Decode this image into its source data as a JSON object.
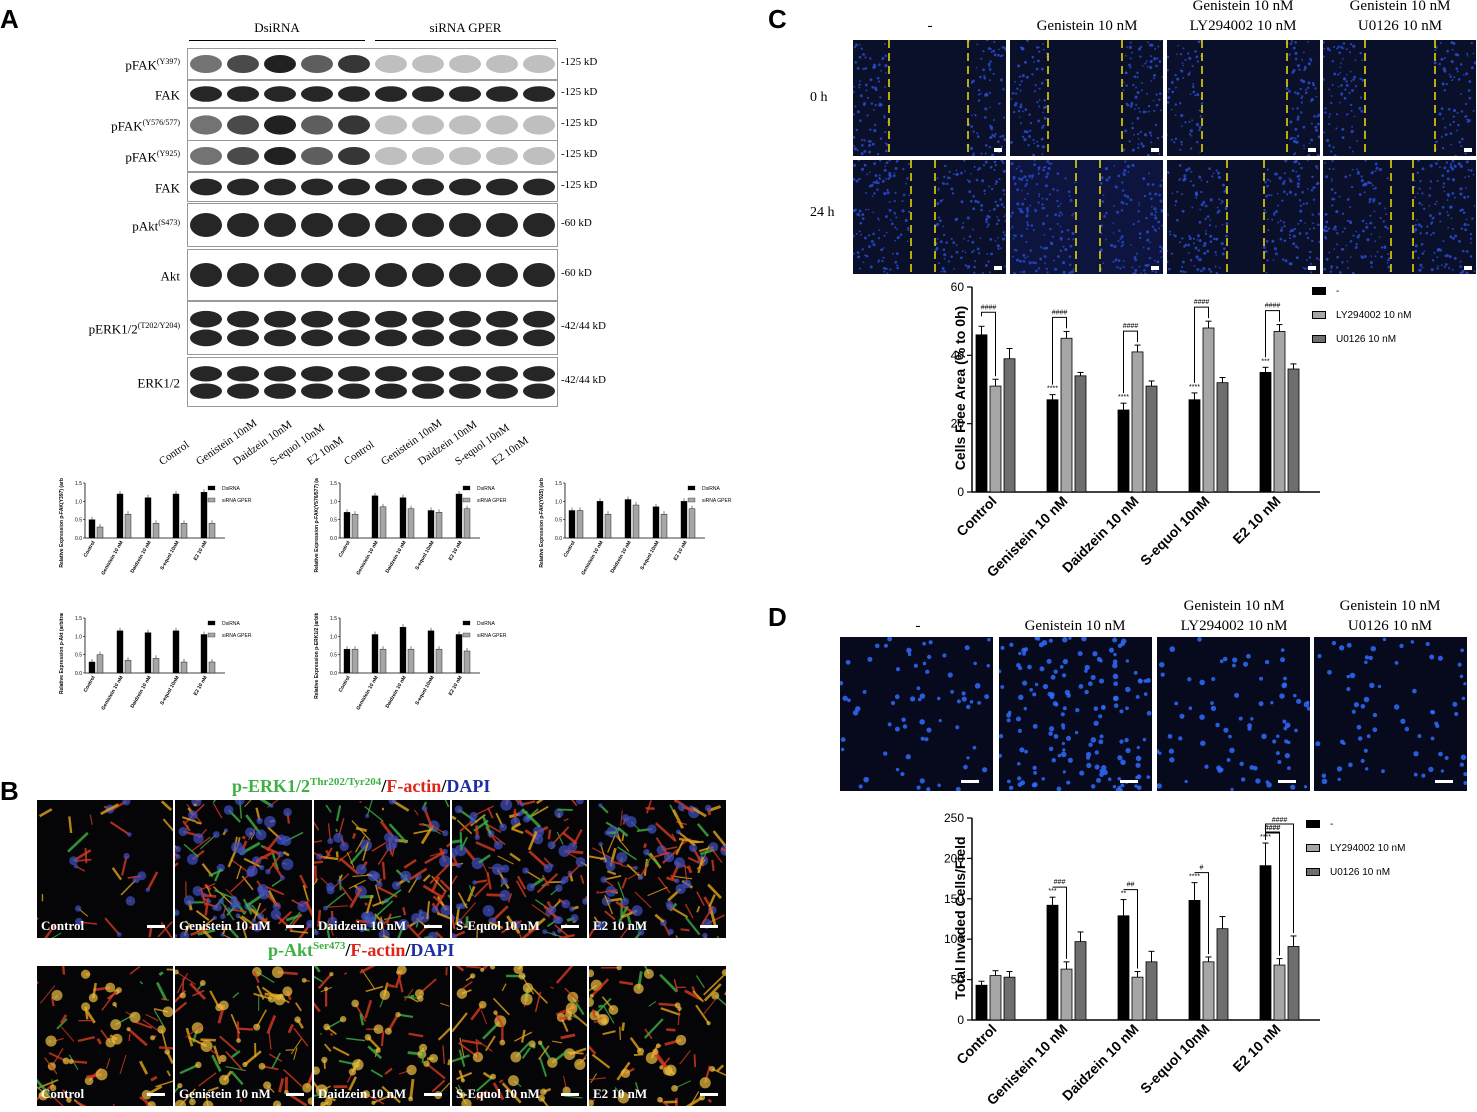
{
  "panels": {
    "A": "A",
    "B": "B",
    "C": "C",
    "D": "D"
  },
  "panel_a": {
    "group_labels": [
      "DsiRNA",
      "siRNA GPER"
    ],
    "blots": [
      {
        "base": "pFAK",
        "sup": "(Y397)",
        "kd": "-125 kD"
      },
      {
        "base": "FAK",
        "sup": "",
        "kd": "-125 kD"
      },
      {
        "base": "pFAK",
        "sup": "(Y576/577)",
        "kd": "-125 kD"
      },
      {
        "base": "pFAK",
        "sup": "(Y925)",
        "kd": "-125 kD"
      },
      {
        "base": "FAK",
        "sup": "",
        "kd": "-125 kD"
      },
      {
        "base": "pAkt",
        "sup": "(S473)",
        "kd": "-60 kD"
      },
      {
        "base": "Akt",
        "sup": "",
        "kd": "-60 kD"
      },
      {
        "base": "pERK1/2",
        "sup": "(T202/Y204)",
        "kd": "-42/44 kD"
      },
      {
        "base": "ERK1/2",
        "sup": "",
        "kd": "-42/44 kD"
      }
    ],
    "lanes": [
      "Control",
      "Genistein 10nM",
      "Daidzein 10nM",
      "S-equol 10nM",
      "E2 10nM",
      "Control",
      "Genistein 10nM",
      "Daidzein 10nM",
      "S-equol 10nM",
      "E2 10nM"
    ],
    "small_chart_categories": [
      "Control",
      "Genistein 10 nM",
      "Daidzein 10 nM",
      "S-equol 10nM",
      "E2 10 nM"
    ],
    "small_chart_legend": [
      "DsiRNA",
      "siRNA GPER"
    ],
    "small_chart_ylabels": [
      "Relative Expression p-FAK(Y397) (arbitrary unit)",
      "Relative Expression p-FAK(Y576/577) (arbitrary unit)",
      "Relative Expression p-FAK(Y925) (arbitrary unit)",
      "Relative Expression p-Akt (arbitrary unit)",
      "Relative Expression p-ERK1/2 (arbitrary unit)"
    ]
  },
  "panel_b": {
    "stain1": {
      "a": "p-ERK1/2",
      "a_sup": "Thr202/Tyr204",
      "b": "/",
      "c": "F-actin",
      "d": "/",
      "e": "DAPI"
    },
    "stain2": {
      "a": "p-Akt",
      "a_sup": "Ser473",
      "b": "/",
      "c": "F-actin",
      "d": "/",
      "e": "DAPI"
    },
    "captions": [
      "Control",
      "Genistein 10 nM",
      "Daidzein 10 nM",
      "S-Equol 10 nM",
      "E2 10 nM"
    ]
  },
  "panel_c": {
    "col_headers": [
      [
        "-"
      ],
      [
        "Genistein 10 nM"
      ],
      [
        "Genistein 10 nM",
        "LY294002 10 nM"
      ],
      [
        "Genistein 10 nM",
        "U0126 10 nM"
      ]
    ],
    "row_headers": [
      "0 h",
      "24 h"
    ],
    "legend": [
      "-",
      "LY294002 10 nM",
      "U0126 10 nM"
    ],
    "ylabel": "Cells Free Area (% to 0h)"
  },
  "panel_d": {
    "col_headers": [
      [
        "-"
      ],
      [
        "Genistein 10 nM"
      ],
      [
        "Genistein 10 nM",
        "LY294002 10 nM"
      ],
      [
        "Genistein 10 nM",
        "U0126 10 nM"
      ]
    ],
    "legend": [
      "-",
      "LY294002 10 nM",
      "U0126 10 nM"
    ],
    "ylabel": "Total Invaded Cells/Field"
  },
  "colors": {
    "black_bar": "#000000",
    "light_gray": "#a6a6a6",
    "dark_gray": "#6e6e6e",
    "fluor_blue": "#1f3fbf",
    "actin_red": "#d63a1f",
    "erk_green": "#3cb043"
  },
  "chart_data": [
    {
      "type": "bar",
      "title": "",
      "xlabel": "",
      "ylabel": "Cells Free Area (% to 0h)",
      "ylim": [
        0,
        60
      ],
      "yticks": [
        0,
        20,
        40,
        60
      ],
      "categories": [
        "Control",
        "Genistein 10 nM",
        "Daidzein 10 nM",
        "S-equol 10nM",
        "E2 10 nM"
      ],
      "series": [
        {
          "name": "-",
          "values": [
            46,
            27,
            24,
            27,
            35
          ],
          "errors": [
            2.5,
            1.5,
            2,
            2,
            1.5
          ]
        },
        {
          "name": "LY294002 10 nM",
          "values": [
            31,
            45,
            41,
            48,
            47
          ],
          "errors": [
            2,
            2,
            2,
            2,
            2
          ]
        },
        {
          "name": "U0126 10 nM",
          "values": [
            39,
            34,
            31,
            32,
            36
          ],
          "errors": [
            3,
            1,
            1.5,
            1.5,
            1.5
          ]
        }
      ],
      "annotations_above": [
        "",
        "****",
        "****",
        "****",
        "***"
      ],
      "brackets": [
        "####",
        "####",
        "####",
        "####",
        "####"
      ]
    },
    {
      "type": "bar",
      "title": "",
      "xlabel": "",
      "ylabel": "Total Invaded Cells/Field",
      "ylim": [
        0,
        250
      ],
      "yticks": [
        0,
        50,
        100,
        150,
        200,
        250
      ],
      "categories": [
        "Control",
        "Genistein 10 nM",
        "Daidzein 10 nM",
        "S-equol 10nM",
        "E2 10 nM"
      ],
      "series": [
        {
          "name": "-",
          "values": [
            43,
            142,
            129,
            148,
            191
          ],
          "errors": [
            5,
            10,
            20,
            22,
            28
          ]
        },
        {
          "name": "LY294002 10 nM",
          "values": [
            55,
            63,
            53,
            72,
            68
          ],
          "errors": [
            6,
            9,
            7,
            6,
            8
          ]
        },
        {
          "name": "U0126 10 nM",
          "values": [
            53,
            97,
            72,
            113,
            91
          ],
          "errors": [
            7,
            12,
            13,
            15,
            13
          ]
        }
      ],
      "annotations_above": [
        "",
        "***",
        "**",
        "****",
        "****"
      ],
      "brackets": [
        "",
        "###",
        "##",
        "#",
        "####"
      ],
      "extra_brackets": [
        "####",
        "####"
      ]
    },
    {
      "type": "bar",
      "ylabel": "Relative Expression p-FAK(Y397) (arbitrary unit)",
      "ylim": [
        0,
        1.5
      ],
      "categories": [
        "Control",
        "Genistein 10 nM",
        "Daidzein 10 nM",
        "S-equol 10nM",
        "E2 10 nM"
      ],
      "series": [
        {
          "name": "DsiRNA",
          "values": [
            0.5,
            1.2,
            1.1,
            1.2,
            1.25
          ]
        },
        {
          "name": "siRNA GPER",
          "values": [
            0.3,
            0.65,
            0.4,
            0.4,
            0.4
          ]
        }
      ]
    },
    {
      "type": "bar",
      "ylabel": "Relative Expression p-FAK(Y576/577) (arbitrary unit)",
      "ylim": [
        0,
        1.5
      ],
      "categories": [
        "Control",
        "Genistein 10 nM",
        "Daidzein 10 nM",
        "S-equol 10nM",
        "E2 10 nM"
      ],
      "series": [
        {
          "name": "DsiRNA",
          "values": [
            0.7,
            1.15,
            1.1,
            0.75,
            1.2
          ]
        },
        {
          "name": "siRNA GPER",
          "values": [
            0.65,
            0.85,
            0.8,
            0.7,
            0.8
          ]
        }
      ]
    },
    {
      "type": "bar",
      "ylabel": "Relative Expression p-FAK(Y925) (arbitrary unit)",
      "ylim": [
        0,
        1.5
      ],
      "categories": [
        "Control",
        "Genistein 10 nM",
        "Daidzein 10 nM",
        "S-equol 10nM",
        "E2 10 nM"
      ],
      "series": [
        {
          "name": "DsiRNA",
          "values": [
            0.75,
            1.0,
            1.05,
            0.85,
            1.0
          ]
        },
        {
          "name": "siRNA GPER",
          "values": [
            0.75,
            0.65,
            0.9,
            0.65,
            0.8
          ]
        }
      ]
    },
    {
      "type": "bar",
      "ylabel": "Relative Expression p-Akt (arbitrary unit)",
      "ylim": [
        0,
        1.5
      ],
      "categories": [
        "Control",
        "Genistein 10 nM",
        "Daidzein 10 nM",
        "S-equol 10nM",
        "E2 10 nM"
      ],
      "series": [
        {
          "name": "DsiRNA",
          "values": [
            0.3,
            1.15,
            1.1,
            1.15,
            1.05
          ]
        },
        {
          "name": "siRNA GPER",
          "values": [
            0.5,
            0.35,
            0.4,
            0.3,
            0.3
          ]
        }
      ]
    },
    {
      "type": "bar",
      "ylabel": "Relative Expression p-ERK1/2 (arbitrary unit)",
      "ylim": [
        0,
        1.5
      ],
      "categories": [
        "Control",
        "Genistein 10 nM",
        "Daidzein 10 nM",
        "S-equol 10nM",
        "E2 10 nM"
      ],
      "series": [
        {
          "name": "DsiRNA",
          "values": [
            0.65,
            1.05,
            1.25,
            1.15,
            1.05
          ]
        },
        {
          "name": "siRNA GPER",
          "values": [
            0.65,
            0.65,
            0.65,
            0.65,
            0.6
          ]
        }
      ]
    }
  ]
}
